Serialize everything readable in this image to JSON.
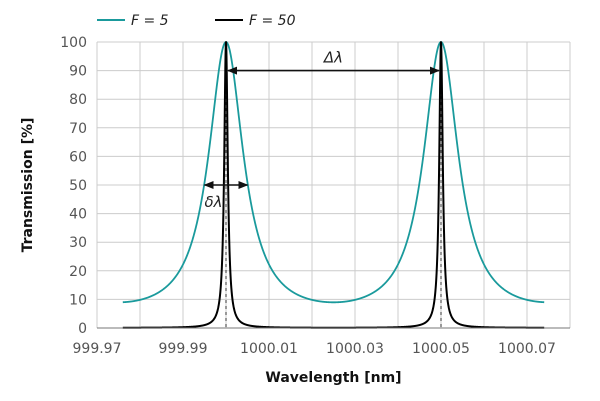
{
  "chart_data": {
    "type": "line",
    "title": "",
    "xlabel": "Wavelength [nm]",
    "ylabel": "Transmission  [%]",
    "xlim": [
      999.97,
      1000.08
    ],
    "ylim": [
      0,
      100
    ],
    "xticks": [
      999.97,
      999.99,
      1000.01,
      1000.03,
      1000.05,
      1000.07
    ],
    "xtick_labels": [
      "999.97",
      "999.99",
      "1000.01",
      "1000.03",
      "1000.05",
      "1000.07"
    ],
    "yticks": [
      0,
      10,
      20,
      30,
      40,
      50,
      60,
      70,
      80,
      90,
      100
    ],
    "ytick_labels": [
      "0",
      "10",
      "20",
      "30",
      "40",
      "50",
      "60",
      "70",
      "80",
      "90",
      "100"
    ],
    "grid": true,
    "legend_position": "top-left",
    "x_range_plotted": [
      999.976,
      1000.074
    ],
    "peaks": [
      1000,
      1000.05
    ],
    "fsr": 0.05,
    "series": [
      {
        "name": "F = 5",
        "finesse": 5,
        "color": "#1a9a9c",
        "stroke_width": 1.8
      },
      {
        "name": "F = 50",
        "finesse": 50,
        "color": "#000000",
        "stroke_width": 2
      }
    ],
    "annotations": [
      {
        "label": "Δλ",
        "type": "double-arrow",
        "from": [
          1000,
          90
        ],
        "to": [
          1000.05,
          90
        ]
      },
      {
        "label": "δλ",
        "type": "double-arrow",
        "from": [
          999.995,
          50
        ],
        "to": [
          1000.005,
          50
        ]
      }
    ],
    "guides": [
      {
        "type": "dashed-vertical",
        "x": 1000
      },
      {
        "type": "dashed-vertical",
        "x": 1000.05
      }
    ]
  }
}
